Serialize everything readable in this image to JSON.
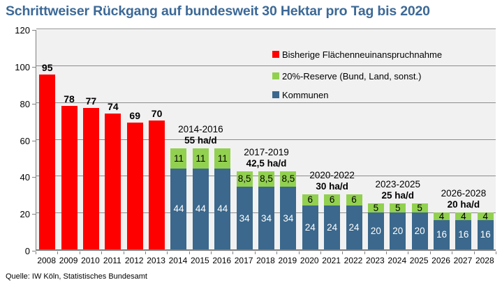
{
  "title": "Schrittweiser Rückgang auf bundesweit 30 Hektar pro Tag bis 2020",
  "source": "Quelle: IW Köln, Statistisches Bundesamt",
  "colors": {
    "red": "#FF0000",
    "green": "#92D050",
    "blue": "#3B688C",
    "title_blue": "#3C6996",
    "plot_bg": "#F1F1F1",
    "gridline": "#8C8C8C",
    "axis": "#7F7F7F",
    "label_on_blue": "#FFFFFF",
    "label_on_green": "#000000"
  },
  "legend": [
    {
      "id": "bisherige",
      "label": "Bisherige Flächenneuinanspruchnahme",
      "color": "#FF0000"
    },
    {
      "id": "reserve",
      "label": "20%-Reserve (Bund, Land, sonst.)",
      "color": "#92D050"
    },
    {
      "id": "kommunen",
      "label": "Kommunen",
      "color": "#3B688C"
    }
  ],
  "chart_data": {
    "type": "bar",
    "stacked": true,
    "title": "Schrittweiser Rückgang auf bundesweit 30 Hektar pro Tag bis 2020",
    "xlabel": "",
    "ylabel": "",
    "ylim": [
      0,
      120
    ],
    "yticks": [
      0,
      20,
      40,
      60,
      80,
      100,
      120
    ],
    "grid": true,
    "legend_position": "upper right",
    "categories": [
      "2008",
      "2009",
      "2010",
      "2011",
      "2012",
      "2013",
      "2014",
      "2015",
      "2016",
      "2017",
      "2018",
      "2019",
      "2020",
      "2021",
      "2022",
      "2023",
      "2024",
      "2025",
      "2026",
      "2027",
      "2028"
    ],
    "series": [
      {
        "name": "Bisherige Flächenneuinanspruchnahme",
        "color": "#FF0000",
        "values": [
          95,
          78,
          77,
          74,
          69,
          70,
          null,
          null,
          null,
          null,
          null,
          null,
          null,
          null,
          null,
          null,
          null,
          null,
          null,
          null,
          null
        ]
      },
      {
        "name": "Kommunen",
        "color": "#3B688C",
        "values": [
          null,
          null,
          null,
          null,
          null,
          null,
          44,
          44,
          44,
          34,
          34,
          34,
          24,
          24,
          24,
          20,
          20,
          20,
          16,
          16,
          16
        ]
      },
      {
        "name": "20%-Reserve (Bund, Land, sonst.)",
        "color": "#92D050",
        "values": [
          null,
          null,
          null,
          null,
          null,
          null,
          11,
          11,
          11,
          8.5,
          8.5,
          8.5,
          6,
          6,
          6,
          5,
          5,
          5,
          4,
          4,
          4
        ]
      }
    ],
    "annotations": [
      {
        "line1": "2014-2016",
        "line2": "55 ha/d",
        "center_category": "2015",
        "above_value": 55
      },
      {
        "line1": "2017-2019",
        "line2": "42,5 ha/d",
        "center_category": "2018",
        "above_value": 42.5
      },
      {
        "line1": "2020-2022",
        "line2": "30 ha/d",
        "center_category": "2021",
        "above_value": 30
      },
      {
        "line1": "2023-2025",
        "line2": "25 ha/d",
        "center_category": "2024",
        "above_value": 25
      },
      {
        "line1": "2026-2028",
        "line2": "20 ha/d",
        "center_category": "2027",
        "above_value": 20
      }
    ]
  }
}
